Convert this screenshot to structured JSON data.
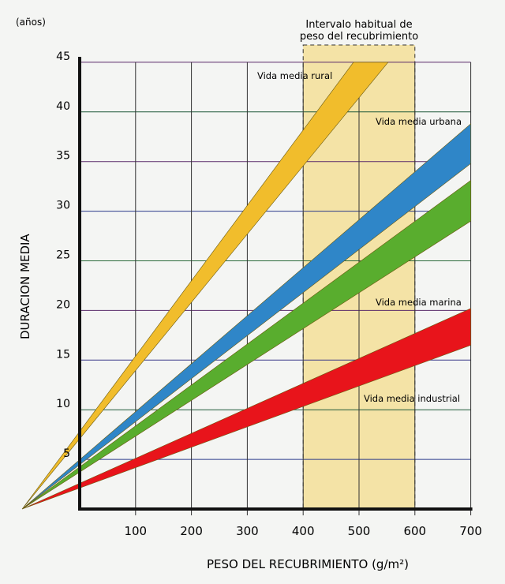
{
  "chart_data": {
    "type": "area",
    "ylabel": "DURACION MEDIA",
    "yunit": "(años)",
    "xlabel": "PESO DEL RECUBRIMIENTO (g/m²)",
    "xlim": [
      0,
      700
    ],
    "ylim": [
      0,
      45
    ],
    "xticks": [
      "100",
      "200",
      "300",
      "400",
      "500",
      "600",
      "700"
    ],
    "yticks": [
      "5",
      "10",
      "15",
      "20",
      "25",
      "30",
      "35",
      "40",
      "45"
    ],
    "grid": true,
    "convergence_point": {
      "x": -103,
      "y": 0
    },
    "interval": {
      "label_line1": "Intervalo habitual de",
      "label_line2": "peso del recubrimiento",
      "from": 400,
      "to": 600,
      "color": "#f4e3a6"
    },
    "series": [
      {
        "name": "Vida media rural",
        "color": "#f1bd2c",
        "upper_end": {
          "x": 490,
          "y": 45
        },
        "lower_end": {
          "x": 552,
          "y": 45
        }
      },
      {
        "name": "Vida media urbana",
        "color": "#2f86c8",
        "upper_end": {
          "x": 700,
          "y": 38.8
        },
        "lower_end": {
          "x": 700,
          "y": 34.8
        }
      },
      {
        "name": "Vida media marina",
        "color": "#59ad2e",
        "upper_end": {
          "x": 700,
          "y": 33.1
        },
        "lower_end": {
          "x": 700,
          "y": 29.0
        }
      },
      {
        "name": "Vida media industrial",
        "color": "#e8141b",
        "upper_end": {
          "x": 700,
          "y": 20.2
        },
        "lower_end": {
          "x": 700,
          "y": 16.5
        }
      }
    ]
  }
}
